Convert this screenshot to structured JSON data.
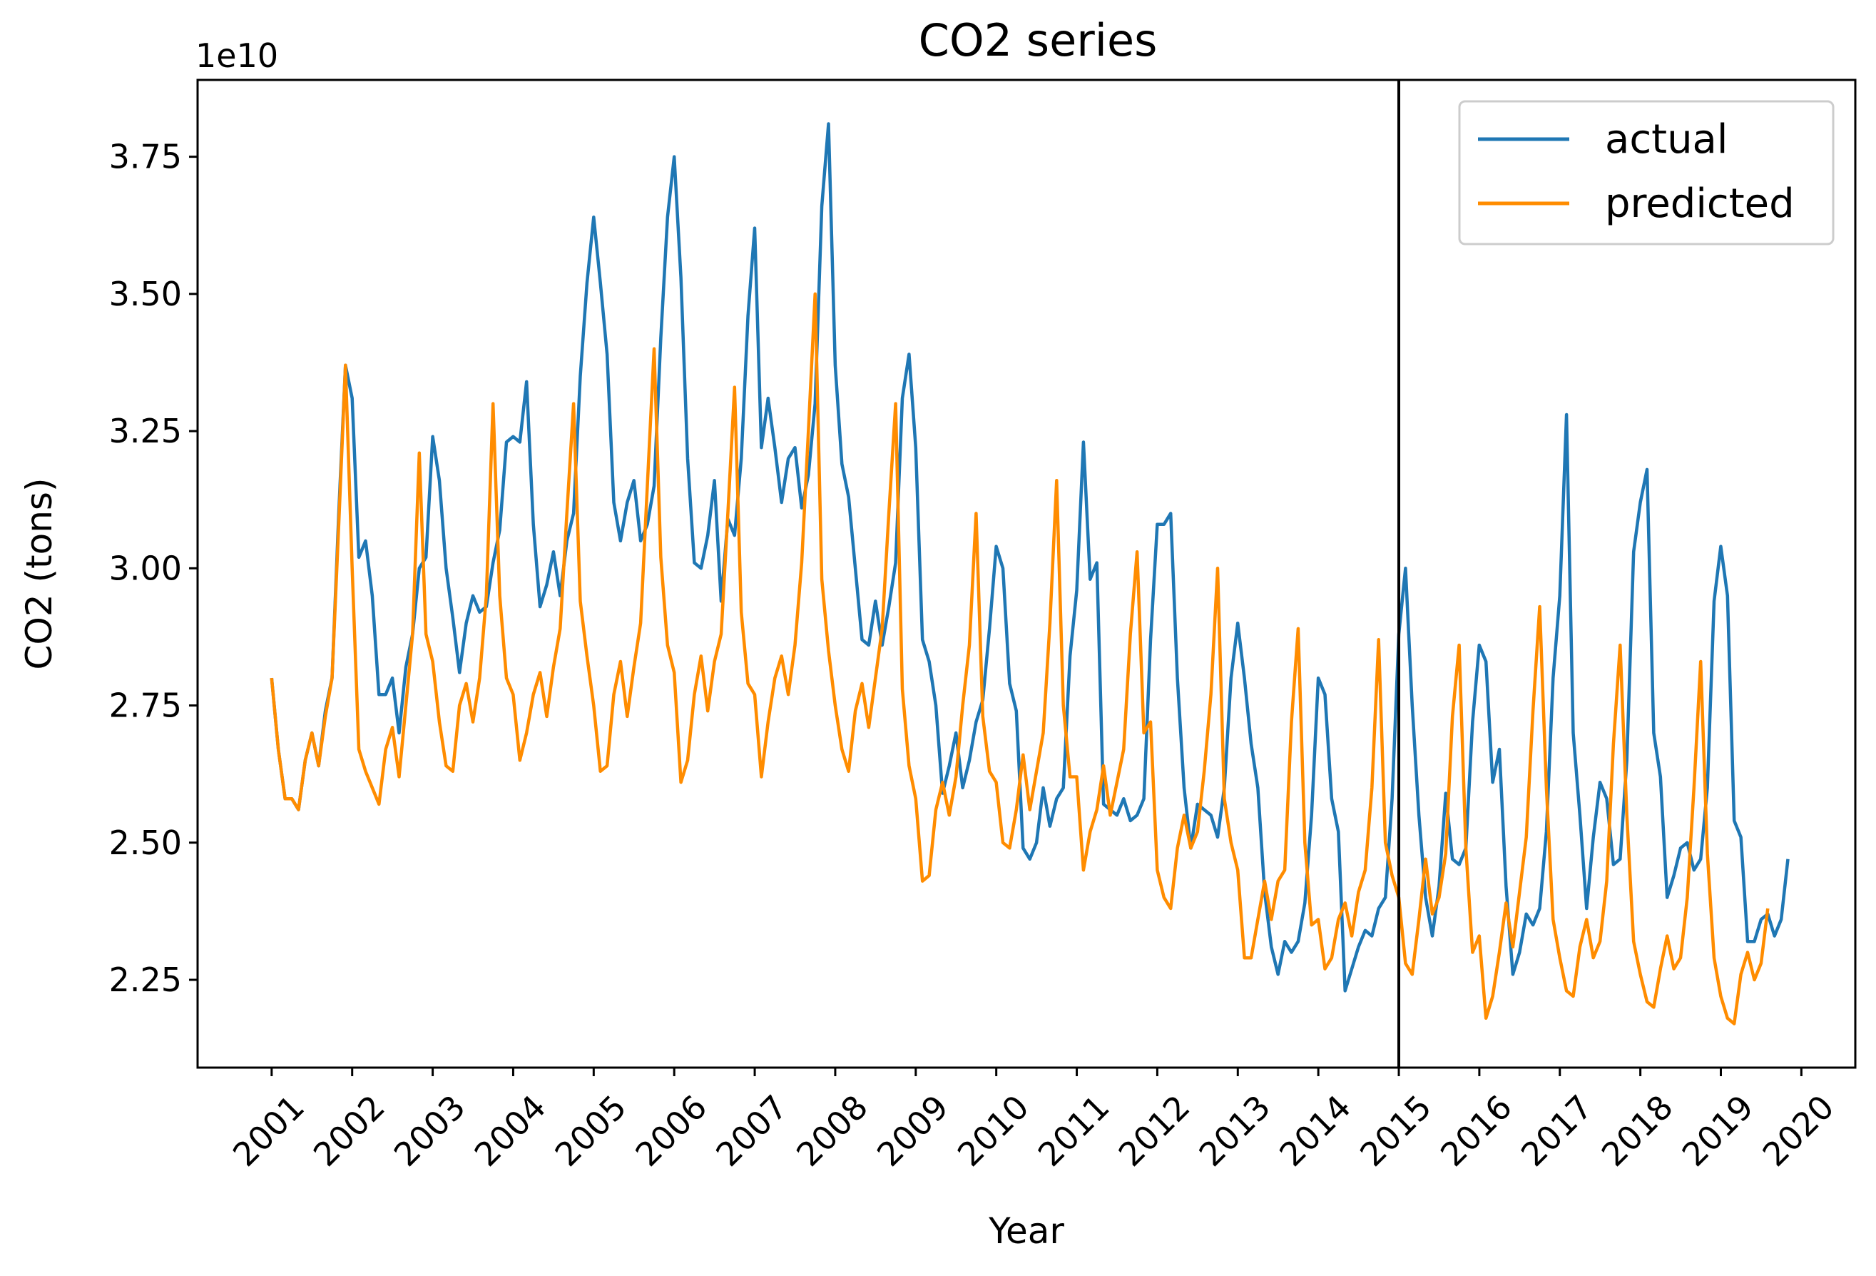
{
  "chart_data": {
    "type": "line",
    "title": "CO2 series",
    "xlabel": "Year",
    "ylabel": "CO2 (tons)",
    "y_offset_text": "1e10",
    "y_scale_factor": 10000000000,
    "ylim": [
      2.09,
      3.89
    ],
    "xlim": [
      2000.08,
      2020.67
    ],
    "y_ticks": [
      2.25,
      2.5,
      2.75,
      3.0,
      3.25,
      3.5,
      3.75
    ],
    "y_tick_labels": [
      "2.25",
      "2.50",
      "2.75",
      "3.00",
      "3.25",
      "3.50",
      "3.75"
    ],
    "x_ticks": [
      2001,
      2002,
      2003,
      2004,
      2005,
      2006,
      2007,
      2008,
      2009,
      2010,
      2011,
      2012,
      2013,
      2014,
      2015,
      2016,
      2017,
      2018,
      2019,
      2020
    ],
    "x_tick_labels": [
      "2001",
      "2002",
      "2003",
      "2004",
      "2005",
      "2006",
      "2007",
      "2008",
      "2009",
      "2010",
      "2011",
      "2012",
      "2013",
      "2014",
      "2015",
      "2016",
      "2017",
      "2018",
      "2019",
      "2020"
    ],
    "grid": false,
    "legend_position": "top-right",
    "vertical_line": {
      "x": 2015.0,
      "color": "#000000"
    },
    "series": [
      {
        "name": "actual",
        "color": "#1f77b4",
        "x_start": 2001.0,
        "x_step": 0.08333,
        "values": [
          2.8,
          2.67,
          2.58,
          2.58,
          2.56,
          2.65,
          2.7,
          2.64,
          2.74,
          2.8,
          3.1,
          3.37,
          3.31,
          3.02,
          3.05,
          2.95,
          2.77,
          2.77,
          2.8,
          2.7,
          2.82,
          2.88,
          3.0,
          3.02,
          3.24,
          3.16,
          3.0,
          2.91,
          2.81,
          2.9,
          2.95,
          2.92,
          2.93,
          3.01,
          3.07,
          3.23,
          3.24,
          3.23,
          3.34,
          3.08,
          2.93,
          2.97,
          3.03,
          2.95,
          3.05,
          3.1,
          3.35,
          3.52,
          3.64,
          3.52,
          3.39,
          3.12,
          3.05,
          3.12,
          3.16,
          3.05,
          3.08,
          3.15,
          3.42,
          3.64,
          3.75,
          3.53,
          3.2,
          3.01,
          3.0,
          3.06,
          3.16,
          2.94,
          3.09,
          3.06,
          3.2,
          3.46,
          3.62,
          3.22,
          3.31,
          3.22,
          3.12,
          3.2,
          3.22,
          3.11,
          3.17,
          3.3,
          3.66,
          3.81,
          3.37,
          3.19,
          3.13,
          3.0,
          2.87,
          2.86,
          2.94,
          2.86,
          2.93,
          3.01,
          3.31,
          3.39,
          3.22,
          2.87,
          2.83,
          2.75,
          2.59,
          2.64,
          2.7,
          2.6,
          2.65,
          2.72,
          2.76,
          2.89,
          3.04,
          3.0,
          2.79,
          2.74,
          2.49,
          2.47,
          2.5,
          2.6,
          2.53,
          2.58,
          2.6,
          2.84,
          2.96,
          3.23,
          2.98,
          3.01,
          2.57,
          2.56,
          2.55,
          2.58,
          2.54,
          2.55,
          2.58,
          2.87,
          3.08,
          3.08,
          3.1,
          2.8,
          2.6,
          2.49,
          2.57,
          2.56,
          2.55,
          2.51,
          2.6,
          2.8,
          2.9,
          2.8,
          2.68,
          2.6,
          2.41,
          2.31,
          2.26,
          2.32,
          2.3,
          2.32,
          2.39,
          2.55,
          2.8,
          2.77,
          2.58,
          2.52,
          2.23,
          2.27,
          2.31,
          2.34,
          2.33,
          2.38,
          2.4,
          2.58,
          2.88,
          3.0,
          2.75,
          2.55,
          2.4,
          2.33,
          2.42,
          2.59,
          2.47,
          2.46,
          2.49,
          2.72,
          2.86,
          2.83,
          2.61,
          2.67,
          2.42,
          2.26,
          2.3,
          2.37,
          2.35,
          2.38,
          2.52,
          2.8,
          2.95,
          3.28,
          2.7,
          2.55,
          2.38,
          2.51,
          2.61,
          2.58,
          2.46,
          2.47,
          2.65,
          3.03,
          3.12,
          3.18,
          2.7,
          2.62,
          2.4,
          2.44,
          2.49,
          2.5,
          2.45,
          2.47,
          2.6,
          2.94,
          3.04,
          2.95,
          2.54,
          2.51,
          2.32,
          2.32,
          2.36,
          2.37,
          2.33,
          2.36,
          2.47
        ]
      },
      {
        "name": "predicted",
        "color": "#ff8c00",
        "x_start": 2001.0,
        "x_step": 0.08333,
        "values": [
          2.8,
          2.67,
          2.58,
          2.58,
          2.56,
          2.65,
          2.7,
          2.64,
          2.73,
          2.8,
          3.08,
          3.37,
          3.0,
          2.67,
          2.63,
          2.6,
          2.57,
          2.67,
          2.71,
          2.62,
          2.75,
          2.88,
          3.21,
          2.88,
          2.83,
          2.72,
          2.64,
          2.63,
          2.75,
          2.79,
          2.72,
          2.8,
          2.95,
          3.3,
          2.95,
          2.8,
          2.77,
          2.65,
          2.7,
          2.77,
          2.81,
          2.73,
          2.82,
          2.89,
          3.1,
          3.3,
          2.94,
          2.84,
          2.75,
          2.63,
          2.64,
          2.77,
          2.83,
          2.73,
          2.82,
          2.9,
          3.15,
          3.4,
          3.02,
          2.86,
          2.81,
          2.61,
          2.65,
          2.77,
          2.84,
          2.74,
          2.83,
          2.88,
          3.1,
          3.33,
          2.92,
          2.79,
          2.77,
          2.62,
          2.72,
          2.8,
          2.84,
          2.77,
          2.86,
          3.01,
          3.25,
          3.5,
          2.98,
          2.85,
          2.75,
          2.67,
          2.63,
          2.74,
          2.79,
          2.71,
          2.8,
          2.89,
          3.1,
          3.3,
          2.78,
          2.64,
          2.58,
          2.43,
          2.44,
          2.56,
          2.61,
          2.55,
          2.62,
          2.75,
          2.86,
          3.1,
          2.73,
          2.63,
          2.61,
          2.5,
          2.49,
          2.56,
          2.66,
          2.56,
          2.63,
          2.7,
          2.9,
          3.16,
          2.75,
          2.62,
          2.62,
          2.45,
          2.52,
          2.56,
          2.64,
          2.55,
          2.61,
          2.67,
          2.88,
          3.03,
          2.7,
          2.72,
          2.45,
          2.4,
          2.38,
          2.49,
          2.55,
          2.49,
          2.52,
          2.63,
          2.77,
          3.0,
          2.58,
          2.5,
          2.45,
          2.29,
          2.29,
          2.36,
          2.43,
          2.36,
          2.43,
          2.45,
          2.72,
          2.89,
          2.5,
          2.35,
          2.36,
          2.27,
          2.29,
          2.36,
          2.39,
          2.33,
          2.41,
          2.45,
          2.6,
          2.87,
          2.5,
          2.44,
          2.4,
          2.28,
          2.26,
          2.36,
          2.47,
          2.37,
          2.4,
          2.48,
          2.73,
          2.86,
          2.49,
          2.3,
          2.33,
          2.18,
          2.22,
          2.3,
          2.39,
          2.31,
          2.41,
          2.51,
          2.74,
          2.93,
          2.6,
          2.36,
          2.29,
          2.23,
          2.22,
          2.31,
          2.36,
          2.29,
          2.32,
          2.43,
          2.68,
          2.86,
          2.55,
          2.32,
          2.26,
          2.21,
          2.2,
          2.27,
          2.33,
          2.27,
          2.29,
          2.4,
          2.6,
          2.83,
          2.48,
          2.29,
          2.22,
          2.18,
          2.17,
          2.26,
          2.3,
          2.25,
          2.28,
          2.38
        ]
      }
    ]
  }
}
